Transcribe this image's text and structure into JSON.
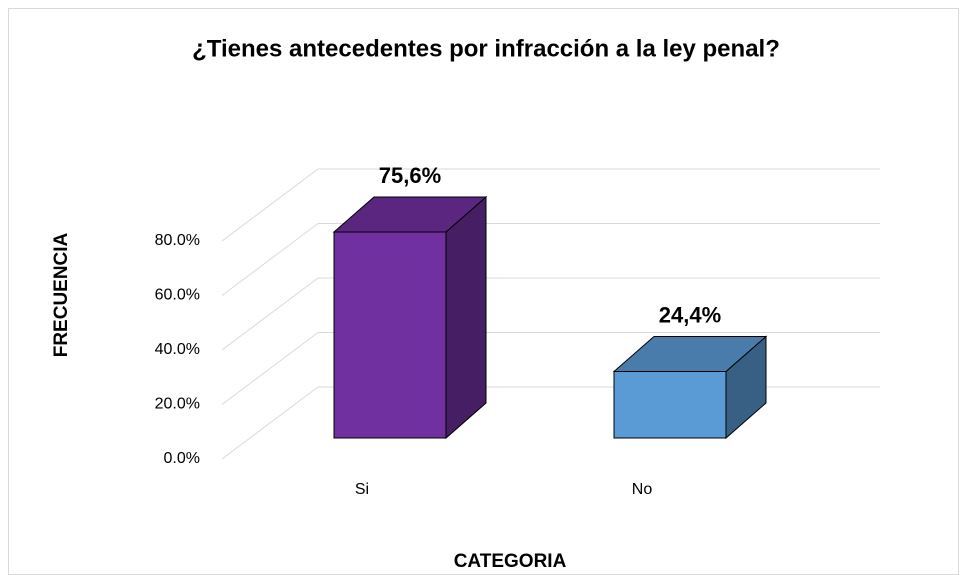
{
  "chart_data": {
    "type": "bar3d",
    "title": "¿Tienes antecedentes por infracción a la ley penal?",
    "x_label": "CATEGORIA",
    "y_label": "FRECUENCIA",
    "categories": [
      "Si",
      "No"
    ],
    "values": [
      75.6,
      24.4
    ],
    "value_labels": [
      "75,6%",
      "24,4%"
    ],
    "colors": [
      "#7030a0",
      "#5b9bd5"
    ],
    "ylim": [
      0,
      80
    ],
    "yticks": [
      {
        "value": 0,
        "label": "0.0%"
      },
      {
        "value": 20,
        "label": "20.0%"
      },
      {
        "value": 40,
        "label": "40.0%"
      },
      {
        "value": 60,
        "label": "60.0%"
      },
      {
        "value": 80,
        "label": "80.0%"
      }
    ],
    "grid": true
  }
}
